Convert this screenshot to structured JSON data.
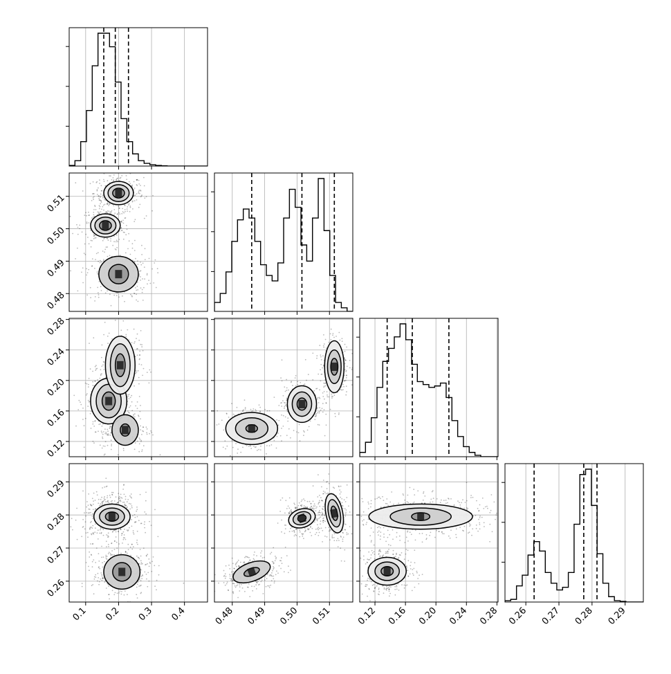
{
  "chart_data": {
    "type": "corner",
    "params": [
      {
        "name": "",
        "range": [
          0.05,
          0.47
        ],
        "ticks": [
          0.1,
          0.2,
          0.3,
          0.4
        ],
        "tick_labels": [
          "0.1",
          "0.2",
          "0.3",
          "0.4"
        ],
        "quantiles": [
          0.155,
          0.19,
          0.23
        ]
      },
      {
        "name": "",
        "range": [
          0.4745,
          0.5172
        ],
        "ticks": [
          0.48,
          0.49,
          0.5,
          0.51
        ],
        "tick_labels": [
          "0.48",
          "0.49",
          "0.50",
          "0.51"
        ],
        "quantiles": [
          0.486,
          0.5015,
          0.5115
        ]
      },
      {
        "name": "",
        "range": [
          0.1,
          0.2815
        ],
        "ticks": [
          0.12,
          0.16,
          0.2,
          0.24,
          0.28
        ],
        "tick_labels": [
          "0.12",
          "0.16",
          "0.20",
          "0.24",
          "0.28"
        ],
        "quantiles": [
          0.136,
          0.169,
          0.217
        ]
      },
      {
        "name": "",
        "range": [
          0.2537,
          0.2955
        ],
        "ticks": [
          0.26,
          0.27,
          0.28,
          0.29
        ],
        "tick_labels": [
          "0.26",
          "0.27",
          "0.28",
          "0.29"
        ],
        "quantiles": [
          0.2625,
          0.2775,
          0.2815
        ]
      }
    ],
    "histograms": [
      {
        "param": 0,
        "edges_start": 0.05,
        "bin_width": 0.0175,
        "counts": [
          0.5,
          4,
          18,
          41,
          74,
          98,
          98,
          88,
          62,
          35,
          18,
          9,
          4,
          2,
          1,
          0.5,
          0.2,
          0,
          0,
          0,
          0,
          0,
          0,
          0
        ]
      },
      {
        "param": 1,
        "edges_start": 0.4745,
        "bin_width": 0.00178,
        "counts": [
          5,
          10,
          22,
          39,
          51,
          57,
          52,
          39,
          26,
          20,
          17,
          27,
          52,
          68,
          58,
          37,
          28,
          52,
          74,
          45,
          20,
          5,
          2,
          0
        ]
      },
      {
        "param": 2,
        "edges_start": 0.1,
        "bin_width": 0.00756,
        "counts": [
          3,
          10,
          27,
          48,
          66,
          75,
          83,
          92,
          81,
          64,
          52,
          50,
          48,
          49,
          51,
          41,
          25,
          14,
          7,
          3,
          1,
          0,
          0,
          0
        ]
      },
      {
        "param": 3,
        "edges_start": 0.2537,
        "bin_width": 0.00174,
        "counts": [
          1,
          2,
          12,
          20,
          35,
          45,
          38,
          22,
          14,
          9,
          11,
          22,
          58,
          95,
          99,
          72,
          36,
          14,
          4,
          1,
          0.5,
          0,
          0,
          0
        ]
      }
    ],
    "pairs": [
      {
        "x": 0,
        "y": 1,
        "modes": [
          {
            "center": [
              0.2,
              0.511
            ],
            "sd": [
              0.03,
              0.0022
            ],
            "weight": 0.4,
            "contours": [
              [
                0.018,
                0.0015
              ],
              [
                0.032,
                0.0026
              ],
              [
                0.045,
                0.0036
              ]
            ]
          },
          {
            "center": [
              0.16,
              0.501
            ],
            "sd": [
              0.03,
              0.0022
            ],
            "weight": 0.3,
            "contours": [
              [
                0.018,
                0.0015
              ],
              [
                0.032,
                0.0026
              ],
              [
                0.045,
                0.0036
              ]
            ]
          },
          {
            "center": [
              0.2,
              0.486
            ],
            "sd": [
              0.04,
              0.0035
            ],
            "weight": 0.3,
            "contours": [
              [
                0.03,
                0.003
              ],
              [
                0.06,
                0.0055
              ]
            ]
          }
        ]
      },
      {
        "x": 0,
        "y": 2,
        "modes": [
          {
            "center": [
              0.17,
              0.173
            ],
            "sd": [
              0.028,
              0.015
            ],
            "weight": 0.45,
            "contours": [
              [
                0.02,
                0.012
              ],
              [
                0.038,
                0.022
              ],
              [
                0.055,
                0.03
              ]
            ]
          },
          {
            "center": [
              0.205,
              0.22
            ],
            "sd": [
              0.025,
              0.018
            ],
            "weight": 0.3,
            "contours": [
              [
                0.015,
                0.015
              ],
              [
                0.03,
                0.028
              ],
              [
                0.045,
                0.038
              ]
            ]
          },
          {
            "center": [
              0.22,
              0.135
            ],
            "sd": [
              0.03,
              0.012
            ],
            "weight": 0.25,
            "contours": [
              [
                0.015,
                0.008
              ],
              [
                0.04,
                0.02
              ]
            ]
          }
        ]
      },
      {
        "x": 1,
        "y": 2,
        "modes": [
          {
            "center": [
              0.486,
              0.137
            ],
            "sd": [
              0.0035,
              0.012
            ],
            "weight": 0.33,
            "contours": [
              [
                0.0018,
                0.005
              ],
              [
                0.005,
                0.014
              ],
              [
                0.008,
                0.021
              ]
            ]
          },
          {
            "center": [
              0.5015,
              0.169
            ],
            "sd": [
              0.0025,
              0.013
            ],
            "weight": 0.33,
            "contours": [
              [
                0.0015,
                0.008
              ],
              [
                0.003,
                0.016
              ],
              [
                0.0045,
                0.024
              ]
            ]
          },
          {
            "center": [
              0.5115,
              0.218
            ],
            "sd": [
              0.0018,
              0.016
            ],
            "weight": 0.34,
            "contours": [
              [
                0.0011,
                0.011
              ],
              [
                0.0021,
                0.022
              ],
              [
                0.003,
                0.034
              ]
            ]
          }
        ]
      },
      {
        "x": 0,
        "y": 3,
        "modes": [
          {
            "center": [
              0.18,
              0.2795
            ],
            "sd": [
              0.035,
              0.0028
            ],
            "weight": 0.55,
            "contours": [
              [
                0.02,
                0.0014
              ],
              [
                0.038,
                0.0026
              ],
              [
                0.055,
                0.0038
              ]
            ]
          },
          {
            "center": [
              0.21,
              0.2628
            ],
            "sd": [
              0.035,
              0.003
            ],
            "weight": 0.45,
            "contours": [
              [
                0.028,
                0.0028
              ],
              [
                0.055,
                0.0052
              ]
            ]
          }
        ]
      },
      {
        "x": 1,
        "y": 3,
        "modes": [
          {
            "center": [
              0.486,
              0.2628
            ],
            "sd": [
              0.004,
              0.002
            ],
            "weight": 0.33,
            "contours": [
              [
                0.0025,
                0.0011
              ],
              [
                0.006,
                0.0028
              ]
            ],
            "angle": -0.35
          },
          {
            "center": [
              0.5015,
              0.279
            ],
            "sd": [
              0.0025,
              0.002
            ],
            "weight": 0.33,
            "contours": [
              [
                0.0013,
                0.001
              ],
              [
                0.0028,
                0.0019
              ],
              [
                0.0042,
                0.0028
              ]
            ],
            "angle": -0.3
          },
          {
            "center": [
              0.5115,
              0.2805
            ],
            "sd": [
              0.0018,
              0.0035
            ],
            "weight": 0.34,
            "contours": [
              [
                0.0009,
                0.0022
              ],
              [
                0.0018,
                0.0042
              ],
              [
                0.0026,
                0.006
              ]
            ],
            "angle": -0.2
          }
        ]
      },
      {
        "x": 2,
        "y": 3,
        "modes": [
          {
            "center": [
              0.18,
              0.2795
            ],
            "sd": [
              0.04,
              0.0025
            ],
            "weight": 0.6,
            "contours": [
              [
                0.012,
                0.0012
              ],
              [
                0.04,
                0.0026
              ],
              [
                0.068,
                0.0038
              ]
            ]
          },
          {
            "center": [
              0.136,
              0.263
            ],
            "sd": [
              0.015,
              0.003
            ],
            "weight": 0.4,
            "contours": [
              [
                0.008,
                0.0014
              ],
              [
                0.016,
                0.0028
              ],
              [
                0.025,
                0.0042
              ]
            ]
          }
        ]
      }
    ],
    "grid": true,
    "legend": ""
  }
}
